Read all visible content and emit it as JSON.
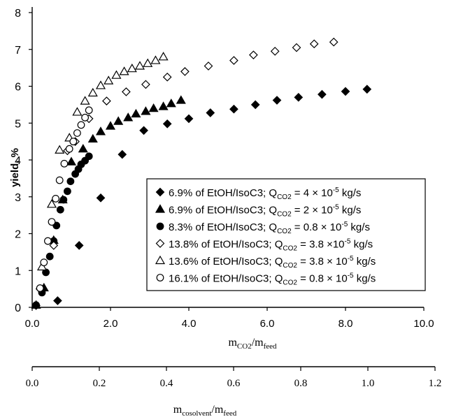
{
  "chart_data": {
    "type": "scatter",
    "ylabel": "yield, %",
    "xlabel_main": "m",
    "xlabel_main_sub1": "CO2",
    "xlabel_main_sep": "/m",
    "xlabel_main_sub2": "feed",
    "xlabel_secondary": "m",
    "xlabel_secondary_sub1": "cosolvent",
    "xlabel_secondary_sep": "/m",
    "xlabel_secondary_sub2": "feed",
    "xlim": [
      0,
      10
    ],
    "ylim": [
      0,
      8
    ],
    "x_ticks": [
      "0.0",
      "2.0",
      "4.0",
      "6.0",
      "8.0",
      "10.0"
    ],
    "y_ticks": [
      "0",
      "1",
      "2",
      "3",
      "4",
      "5",
      "6",
      "7",
      "8"
    ],
    "secondary_xlim": [
      0,
      1.2
    ],
    "secondary_x_ticks": [
      "0.0",
      "0.2",
      "0.4",
      "0.6",
      "0.8",
      "1.0",
      "1.2"
    ],
    "grid": false,
    "legend_placement": "lower-right",
    "series": [
      {
        "name": "6.9% of EtOH/IsoC3; Q",
        "sub": "CO2",
        "tail": " = 4 × 10",
        "exp": "-5",
        "unit": " kg/s",
        "marker": "diamond-filled",
        "points": [
          [
            0.1,
            0.05
          ],
          [
            0.65,
            0.18
          ],
          [
            1.2,
            1.68
          ],
          [
            1.75,
            2.97
          ],
          [
            2.3,
            4.15
          ],
          [
            2.85,
            4.8
          ],
          [
            3.45,
            4.98
          ],
          [
            4.0,
            5.12
          ],
          [
            4.55,
            5.28
          ],
          [
            5.15,
            5.38
          ],
          [
            5.7,
            5.5
          ],
          [
            6.25,
            5.62
          ],
          [
            6.8,
            5.7
          ],
          [
            7.4,
            5.78
          ],
          [
            8.0,
            5.86
          ],
          [
            8.55,
            5.92
          ]
        ]
      },
      {
        "name": "6.9% of EtOH/IsoC3; Q",
        "sub": "CO2",
        "tail": " = 2 × 10",
        "exp": "-5",
        "unit": " kg/s",
        "marker": "triangle-filled",
        "points": [
          [
            0.1,
            0.06
          ],
          [
            0.3,
            0.53
          ],
          [
            0.55,
            1.82
          ],
          [
            0.78,
            2.92
          ],
          [
            1.0,
            3.95
          ],
          [
            1.3,
            4.3
          ],
          [
            1.55,
            4.57
          ],
          [
            1.75,
            4.77
          ],
          [
            2.0,
            4.92
          ],
          [
            2.2,
            5.05
          ],
          [
            2.45,
            5.15
          ],
          [
            2.65,
            5.25
          ],
          [
            2.9,
            5.32
          ],
          [
            3.1,
            5.4
          ],
          [
            3.35,
            5.45
          ],
          [
            3.55,
            5.53
          ],
          [
            3.8,
            5.62
          ]
        ]
      },
      {
        "name": "8.3% of EtOH/IsoC3; Q",
        "sub": "CO2",
        "tail": " = 0.8 × 10",
        "exp": "-5",
        "unit": " kg/s",
        "marker": "circle-filled",
        "points": [
          [
            0.1,
            0.06
          ],
          [
            0.25,
            0.4
          ],
          [
            0.35,
            0.95
          ],
          [
            0.45,
            1.38
          ],
          [
            0.55,
            1.8
          ],
          [
            0.62,
            2.22
          ],
          [
            0.72,
            2.65
          ],
          [
            0.8,
            2.92
          ],
          [
            0.9,
            3.15
          ],
          [
            0.98,
            3.42
          ],
          [
            1.1,
            3.62
          ],
          [
            1.18,
            3.75
          ],
          [
            1.25,
            3.88
          ],
          [
            1.35,
            3.98
          ],
          [
            1.45,
            4.1
          ]
        ]
      },
      {
        "name": "13.8% of EtOH/IsoC3; Q",
        "sub": "CO2",
        "tail": " = 3.8 ×10",
        "exp": "-5",
        "unit": " kg/s",
        "marker": "diamond-open",
        "points": [
          [
            0.2,
            0.5
          ],
          [
            0.55,
            1.68
          ],
          [
            0.9,
            4.25
          ],
          [
            1.1,
            4.5
          ],
          [
            1.45,
            5.12
          ],
          [
            1.9,
            5.6
          ],
          [
            2.4,
            5.85
          ],
          [
            2.9,
            6.05
          ],
          [
            3.45,
            6.25
          ],
          [
            3.9,
            6.4
          ],
          [
            4.5,
            6.55
          ],
          [
            5.15,
            6.7
          ],
          [
            5.65,
            6.85
          ],
          [
            6.2,
            6.95
          ],
          [
            6.75,
            7.05
          ],
          [
            7.2,
            7.15
          ],
          [
            7.7,
            7.2
          ]
        ]
      },
      {
        "name": "13.6% of EtOH/IsoC3; Q",
        "sub": "CO2",
        "tail": " = 3.8 × 10",
        "exp": "-5",
        "unit": " kg/s",
        "marker": "triangle-open",
        "points": [
          [
            0.25,
            1.1
          ],
          [
            0.5,
            2.8
          ],
          [
            0.7,
            4.27
          ],
          [
            0.95,
            4.6
          ],
          [
            1.15,
            5.3
          ],
          [
            1.35,
            5.6
          ],
          [
            1.55,
            5.82
          ],
          [
            1.75,
            6.02
          ],
          [
            1.95,
            6.15
          ],
          [
            2.15,
            6.3
          ],
          [
            2.35,
            6.4
          ],
          [
            2.55,
            6.48
          ],
          [
            2.75,
            6.55
          ],
          [
            2.95,
            6.62
          ],
          [
            3.15,
            6.7
          ],
          [
            3.35,
            6.8
          ]
        ]
      },
      {
        "name": "16.1% of EtOH/IsoC3; Q",
        "sub": "CO2",
        "tail": " = 0.8 × 10",
        "exp": "-5",
        "unit": " kg/s",
        "marker": "circle-open",
        "points": [
          [
            0.2,
            0.52
          ],
          [
            0.3,
            1.22
          ],
          [
            0.4,
            1.8
          ],
          [
            0.5,
            2.32
          ],
          [
            0.6,
            2.95
          ],
          [
            0.7,
            3.45
          ],
          [
            0.82,
            3.9
          ],
          [
            0.95,
            4.3
          ],
          [
            1.05,
            4.5
          ],
          [
            1.15,
            4.73
          ],
          [
            1.25,
            4.95
          ],
          [
            1.35,
            5.15
          ],
          [
            1.45,
            5.35
          ]
        ]
      }
    ]
  }
}
